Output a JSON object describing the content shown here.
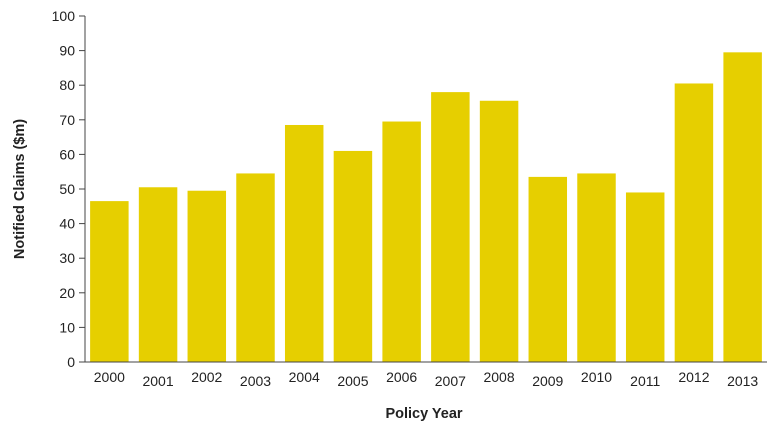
{
  "chart_data": {
    "type": "bar",
    "title": "",
    "xlabel": "Policy Year",
    "ylabel": "Notified Claims ($m)",
    "ylim": [
      0,
      100
    ],
    "yticks": [
      0,
      10,
      20,
      30,
      40,
      50,
      60,
      70,
      80,
      90,
      100
    ],
    "grid": false,
    "bar_color": "#E6CF00",
    "categories": [
      "2000",
      "2001",
      "2002",
      "2003",
      "2004",
      "2005",
      "2006",
      "2007",
      "2008",
      "2009",
      "2010",
      "2011",
      "2012",
      "2013"
    ],
    "values": [
      46.5,
      50.5,
      49.5,
      54.5,
      68.5,
      61,
      69.5,
      78,
      75.5,
      53.5,
      54.5,
      49,
      80.5,
      89.5
    ]
  }
}
